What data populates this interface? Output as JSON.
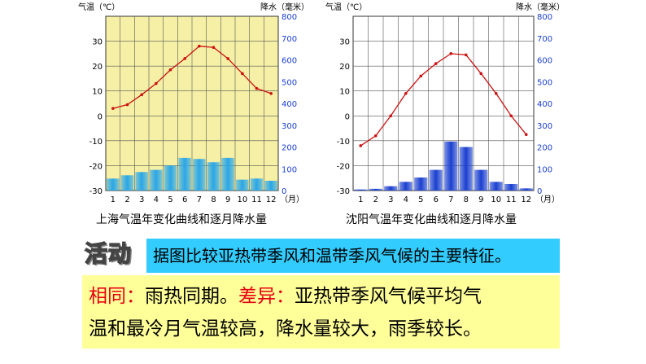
{
  "chart_data": [
    {
      "type": "bar+line",
      "caption": "上海气温年变化曲线和逐月降水量",
      "left_axis_label": "气温（℃）",
      "right_axis_label": "降水（毫米）",
      "month_unit": "（月）",
      "left_ticks": [
        30,
        20,
        10,
        0,
        -10,
        -20,
        -30
      ],
      "right_ticks": [
        800,
        700,
        600,
        500,
        400,
        300,
        200,
        100,
        0
      ],
      "ylim_temp": [
        -30,
        40
      ],
      "ylim_precip": [
        0,
        800
      ],
      "categories": [
        "1",
        "2",
        "3",
        "4",
        "5",
        "6",
        "7",
        "8",
        "9",
        "10",
        "11",
        "12"
      ],
      "temperature": [
        3,
        4.5,
        8.5,
        13,
        18.5,
        23,
        28,
        27.5,
        23,
        17,
        11,
        9
      ],
      "precipitation": [
        55,
        70,
        85,
        95,
        115,
        150,
        145,
        130,
        150,
        50,
        55,
        45
      ],
      "bg_color": "#f5f0a5",
      "bar_color": "#29a6e8",
      "line_color": "#cc1111"
    },
    {
      "type": "bar+line",
      "caption": "沈阳气温年变化曲线和逐月降水量",
      "left_axis_label": "气温（℃）",
      "right_axis_label": "降水（毫米）",
      "month_unit": "（月）",
      "left_ticks": [
        30,
        20,
        10,
        0,
        -10,
        -20,
        -30
      ],
      "right_ticks": [
        800,
        700,
        600,
        500,
        400,
        300,
        200,
        100,
        0
      ],
      "ylim_temp": [
        -30,
        40
      ],
      "ylim_precip": [
        0,
        800
      ],
      "categories": [
        "1",
        "2",
        "3",
        "4",
        "5",
        "6",
        "7",
        "8",
        "9",
        "10",
        "11",
        "12"
      ],
      "temperature": [
        -12,
        -8,
        0,
        9,
        16,
        21,
        25,
        24.5,
        17,
        9,
        0,
        -7.5
      ],
      "precipitation": [
        5,
        8,
        20,
        40,
        60,
        95,
        225,
        200,
        95,
        40,
        30,
        10
      ],
      "bg_color": "#ffffff",
      "bar_color": "#1a3fcf",
      "line_color": "#cc1111"
    }
  ],
  "activity": {
    "badge": "活动",
    "prompt": "据图比较亚热带季风和温带季风气候的主要特征。",
    "answer_label_same": "相同：",
    "answer_same": "雨热同期。",
    "answer_label_diff": "差异：",
    "answer_diff_line1": "亚热带季风气候平均气",
    "answer_diff_line2": "温和最冷月气温较高，降水量较大，雨季较长。"
  }
}
